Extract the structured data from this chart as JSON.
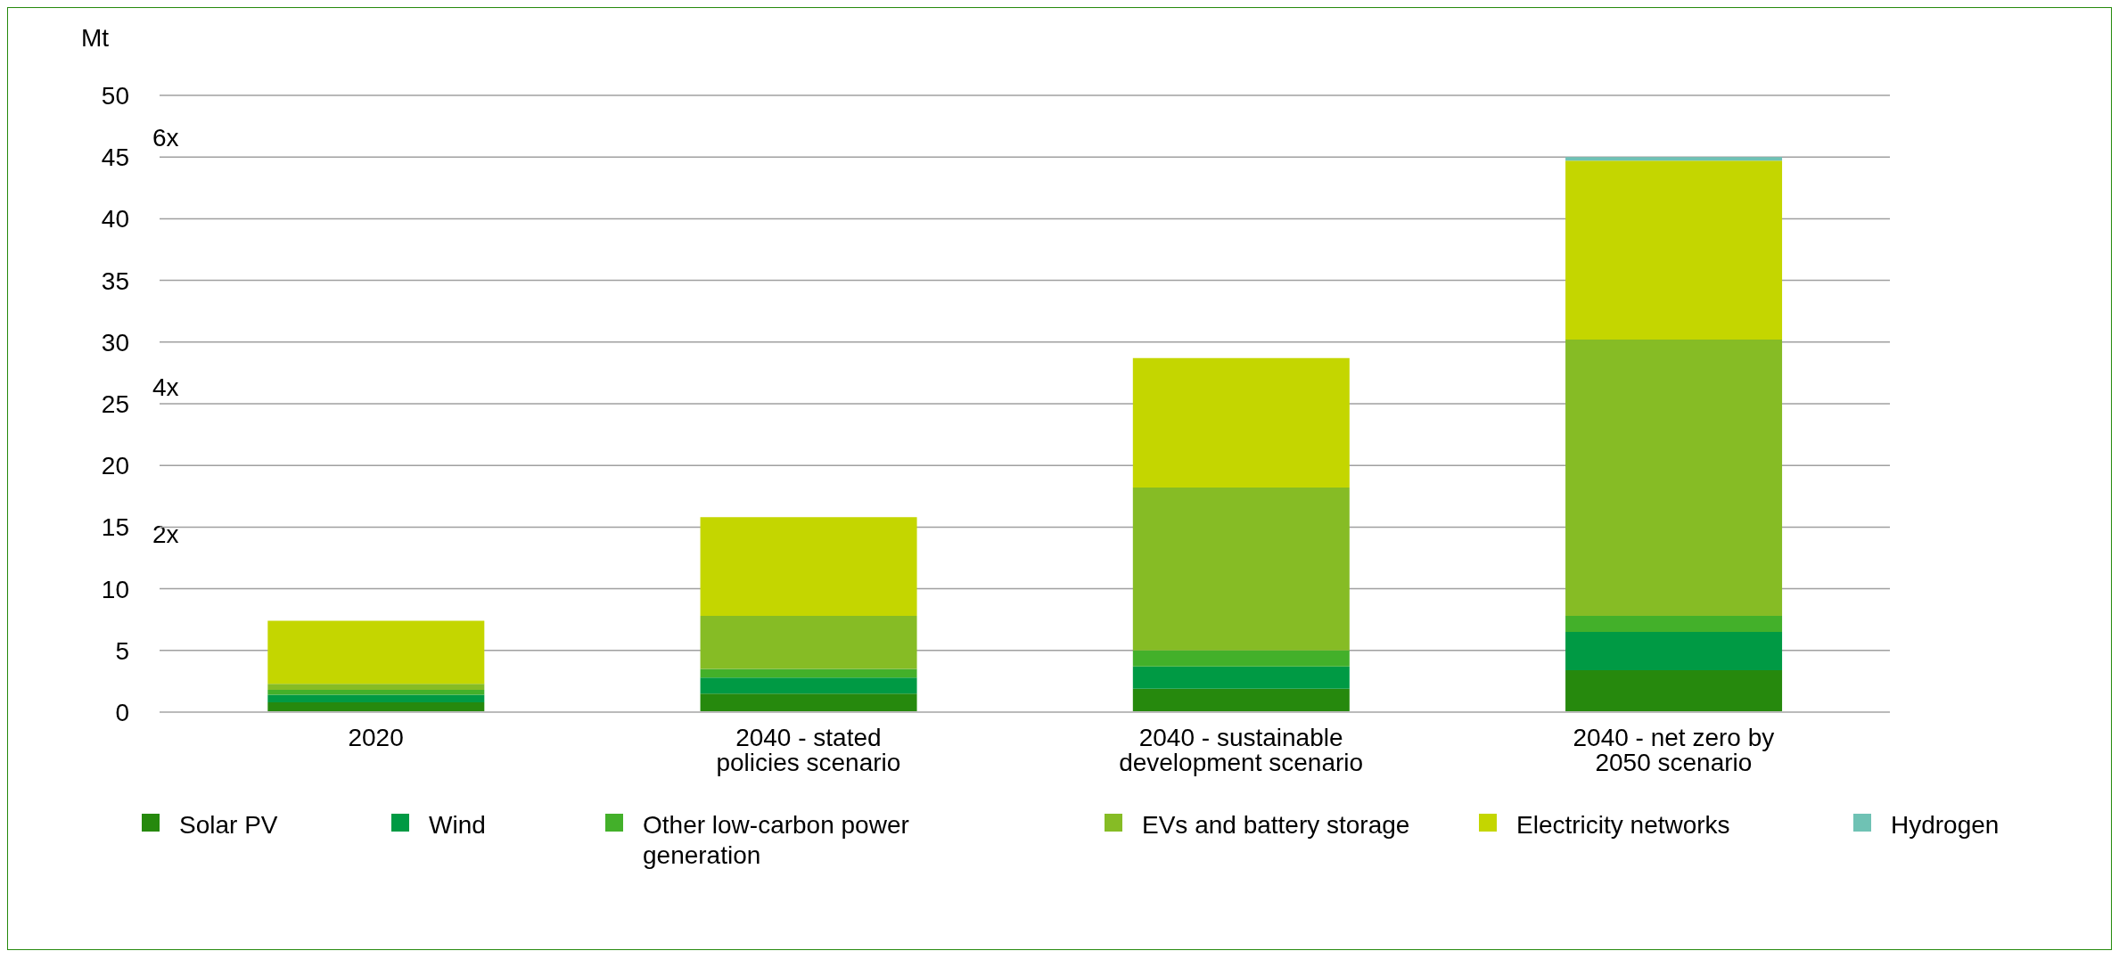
{
  "chart_data": {
    "type": "bar",
    "stacked": true,
    "ylabel": "Mt",
    "categories": [
      "2020",
      "2040 - stated policies scenario",
      "2040 - sustainable development scenario",
      "2040 - net zero by 2050 scenario"
    ],
    "series": [
      {
        "name": "Solar PV",
        "color": "#26890d",
        "values": [
          0.8,
          1.5,
          1.9,
          3.4
        ]
      },
      {
        "name": "Wind",
        "color": "#009a44",
        "values": [
          0.6,
          1.3,
          1.8,
          3.1
        ]
      },
      {
        "name": "Other low-carbon power generation",
        "color": "#43b02a",
        "values": [
          0.4,
          0.7,
          1.3,
          1.3
        ]
      },
      {
        "name": "EVs and battery storage",
        "color": "#86bc25",
        "values": [
          0.5,
          4.3,
          13.2,
          22.4
        ]
      },
      {
        "name": "Electricity networks",
        "color": "#c4d600",
        "values": [
          5.1,
          8.0,
          10.5,
          14.5
        ]
      },
      {
        "name": "Hydrogen",
        "color": "#6fc2b4",
        "values": [
          null,
          null,
          null,
          0.3
        ]
      }
    ],
    "ylim": [
      0,
      50
    ],
    "yticks": [
      0,
      5,
      10,
      15,
      20,
      25,
      30,
      35,
      40,
      45,
      50
    ],
    "grid": "y",
    "legend": "bottom",
    "annotations": [
      "6x",
      "4x",
      "2x"
    ]
  }
}
